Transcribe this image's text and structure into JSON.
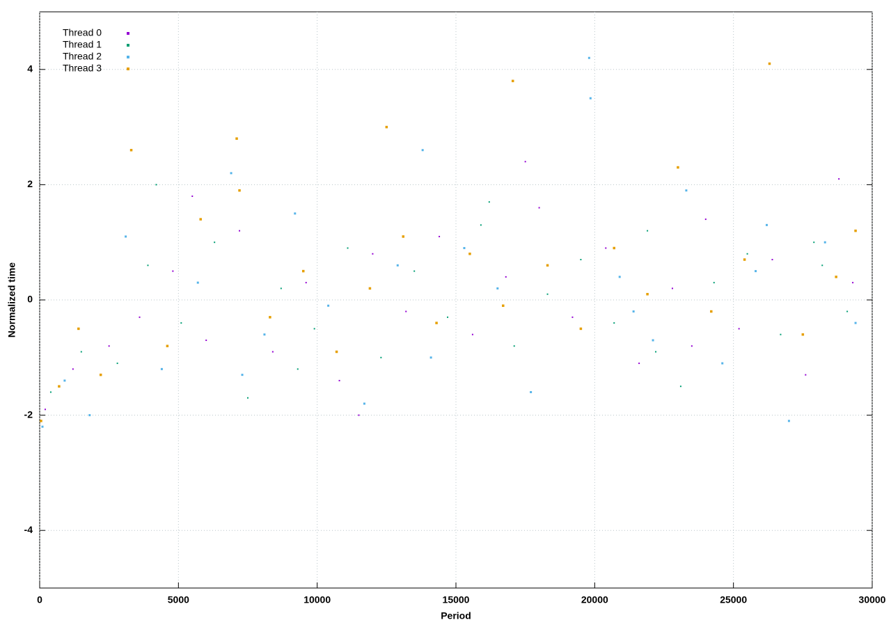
{
  "chart_data": {
    "type": "scatter",
    "x_label": "Period",
    "y_label": "Normalized time",
    "xlim": [
      0,
      30000
    ],
    "ylim": [
      -5,
      5
    ],
    "xticks": [
      0,
      5000,
      10000,
      15000,
      20000,
      25000,
      30000
    ],
    "yticks": [
      -4,
      -2,
      0,
      2,
      4
    ],
    "grid": true,
    "legend": "top-left",
    "series": [
      {
        "name": "Thread 0",
        "color": "#9400d3",
        "x": [
          200,
          1200,
          2500,
          3600,
          4800,
          6000,
          7200,
          8400,
          9600,
          10800,
          12000,
          13200,
          14400,
          15600,
          16800,
          18000,
          19200,
          20400,
          21600,
          22800,
          24000,
          25200,
          26400,
          27600,
          28800,
          29300,
          5500,
          11500,
          17500,
          23500
        ],
        "values": [
          -1.9,
          -1.2,
          -0.8,
          -0.3,
          0.5,
          -0.7,
          1.2,
          -0.9,
          0.3,
          -1.4,
          0.8,
          -0.2,
          1.1,
          -0.6,
          0.4,
          1.6,
          -0.3,
          0.9,
          -1.1,
          0.2,
          1.4,
          -0.5,
          0.7,
          -1.3,
          2.1,
          0.3,
          1.8,
          -2.0,
          2.4,
          -0.8
        ]
      },
      {
        "name": "Thread 1",
        "color": "#009e73",
        "x": [
          400,
          1500,
          2800,
          3900,
          5100,
          6300,
          7500,
          8700,
          9900,
          11100,
          12300,
          13500,
          14700,
          15900,
          17100,
          18300,
          19500,
          20700,
          21900,
          23100,
          24300,
          25500,
          26700,
          27900,
          29100,
          4200,
          9300,
          16200,
          22200,
          28200
        ],
        "values": [
          -1.6,
          -0.9,
          -1.1,
          0.6,
          -0.4,
          1.0,
          -1.7,
          0.2,
          -0.5,
          0.9,
          -1.0,
          0.5,
          -0.3,
          1.3,
          -0.8,
          0.1,
          0.7,
          -0.4,
          1.2,
          -1.5,
          0.3,
          0.8,
          -0.6,
          1.0,
          -0.2,
          2.0,
          -1.2,
          1.7,
          -0.9,
          0.6
        ]
      },
      {
        "name": "Thread 2",
        "color": "#56b4e9",
        "x": [
          100,
          900,
          1800,
          3100,
          4400,
          5700,
          6900,
          8100,
          9200,
          10400,
          11700,
          12900,
          14100,
          15300,
          16500,
          17700,
          19800,
          19850,
          20900,
          22100,
          23300,
          24600,
          25800,
          27000,
          28300,
          29400,
          7300,
          13800,
          21400,
          26200
        ],
        "values": [
          -2.2,
          -1.4,
          -2.0,
          1.1,
          -1.2,
          0.3,
          2.2,
          -0.6,
          1.5,
          -0.1,
          -1.8,
          0.6,
          -1.0,
          0.9,
          0.2,
          -1.6,
          4.2,
          3.5,
          0.4,
          -0.7,
          1.9,
          -1.1,
          0.5,
          -2.1,
          1.0,
          -0.4,
          -1.3,
          2.6,
          -0.2,
          1.3
        ]
      },
      {
        "name": "Thread 3",
        "color": "#e69f00",
        "x": [
          50,
          700,
          1400,
          2200,
          3300,
          4600,
          5800,
          7100,
          7200,
          8300,
          9500,
          10700,
          11900,
          13100,
          14300,
          15500,
          16700,
          17050,
          18300,
          19500,
          20700,
          21900,
          23000,
          24200,
          25400,
          26300,
          27500,
          28700,
          29400,
          12500
        ],
        "values": [
          -2.1,
          -1.5,
          -0.5,
          -1.3,
          2.6,
          -0.8,
          1.4,
          2.8,
          1.9,
          -0.3,
          0.5,
          -0.9,
          0.2,
          1.1,
          -0.4,
          0.8,
          -0.1,
          3.8,
          0.6,
          -0.5,
          0.9,
          0.1,
          2.3,
          -0.2,
          0.7,
          4.1,
          -0.6,
          0.4,
          1.2,
          3.0
        ]
      }
    ]
  }
}
